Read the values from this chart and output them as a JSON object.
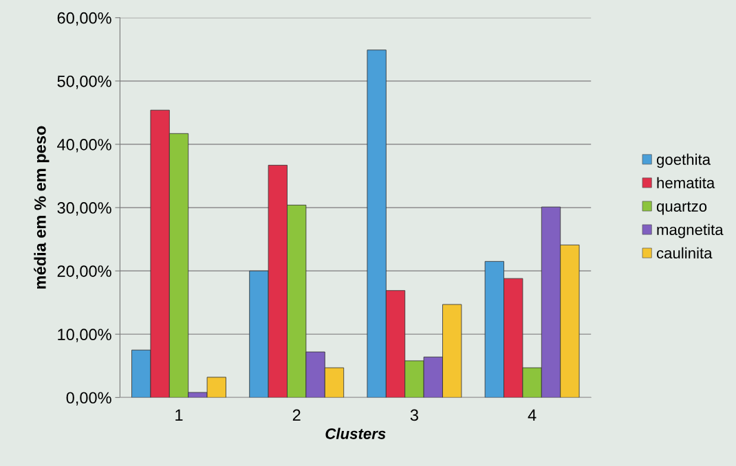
{
  "chart_data": {
    "type": "bar",
    "xlabel": "Clusters",
    "ylabel": "média em % em peso",
    "categories": [
      "1",
      "2",
      "3",
      "4"
    ],
    "series": [
      {
        "name": "goethita",
        "color": "#4a9fd8",
        "values": [
          7.5,
          20.0,
          54.9,
          21.5
        ]
      },
      {
        "name": "hematita",
        "color": "#e0304a",
        "values": [
          45.4,
          36.7,
          16.9,
          18.8
        ]
      },
      {
        "name": "quartzo",
        "color": "#8cc43c",
        "values": [
          41.7,
          30.4,
          5.8,
          4.7
        ]
      },
      {
        "name": "magnetita",
        "color": "#8060c0",
        "values": [
          0.8,
          7.2,
          6.4,
          30.1
        ]
      },
      {
        "name": "caulinita",
        "color": "#f4c430",
        "values": [
          3.2,
          4.7,
          14.7,
          24.1
        ]
      }
    ],
    "ylim": [
      0,
      60
    ],
    "yticks": [
      {
        "value": 0,
        "label": "0,00%"
      },
      {
        "value": 10,
        "label": "10,00%"
      },
      {
        "value": 20,
        "label": "20,00%"
      },
      {
        "value": 30,
        "label": "30,00%"
      },
      {
        "value": 40,
        "label": "40,00%"
      },
      {
        "value": 50,
        "label": "50,00%"
      },
      {
        "value": 60,
        "label": "60,00%"
      }
    ],
    "grid": "y",
    "legend": "right"
  }
}
